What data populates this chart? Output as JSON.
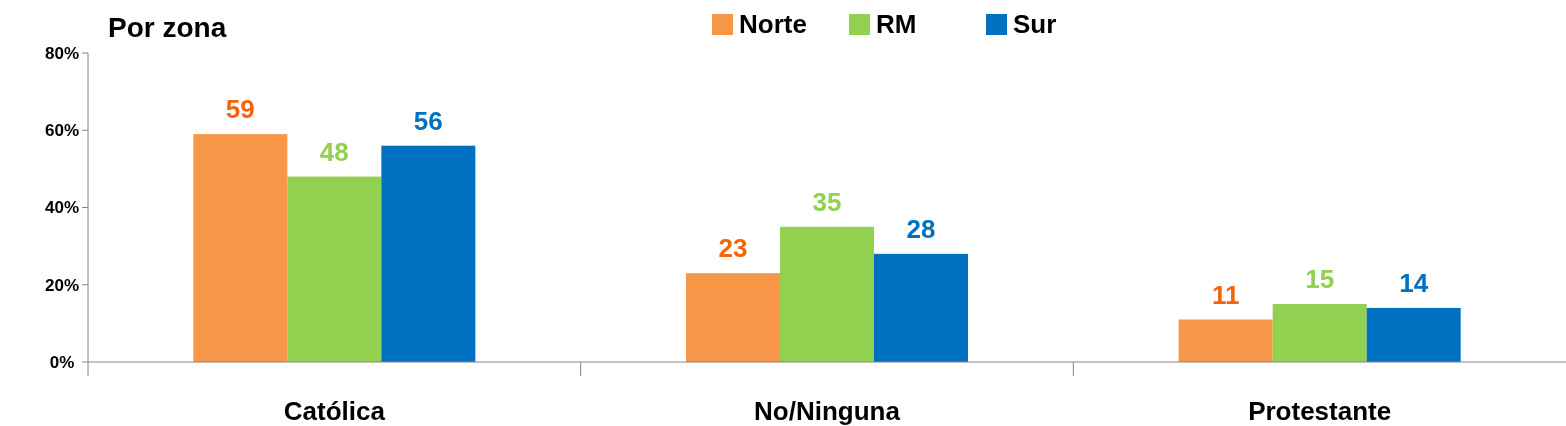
{
  "chart_data": {
    "type": "bar",
    "title": "Por zona",
    "categories": [
      "Católica",
      "No/Ninguna",
      "Protestante"
    ],
    "series": [
      {
        "name": "Norte",
        "color": "#f79646",
        "values": [
          59,
          23,
          11
        ]
      },
      {
        "name": "RM",
        "color": "#92d050",
        "values": [
          48,
          35,
          15
        ]
      },
      {
        "name": "Sur",
        "color": "#0070c0",
        "values": [
          56,
          28,
          14
        ]
      }
    ],
    "ylim": [
      0,
      80
    ],
    "yticks": [
      {
        "value": 0,
        "label": "0%"
      },
      {
        "value": 20,
        "label": "20%"
      },
      {
        "value": 40,
        "label": "40%"
      },
      {
        "value": 60,
        "label": "60%"
      },
      {
        "value": 80,
        "label": "80%"
      }
    ],
    "data_labels": true,
    "legend": "top",
    "grid": false
  }
}
